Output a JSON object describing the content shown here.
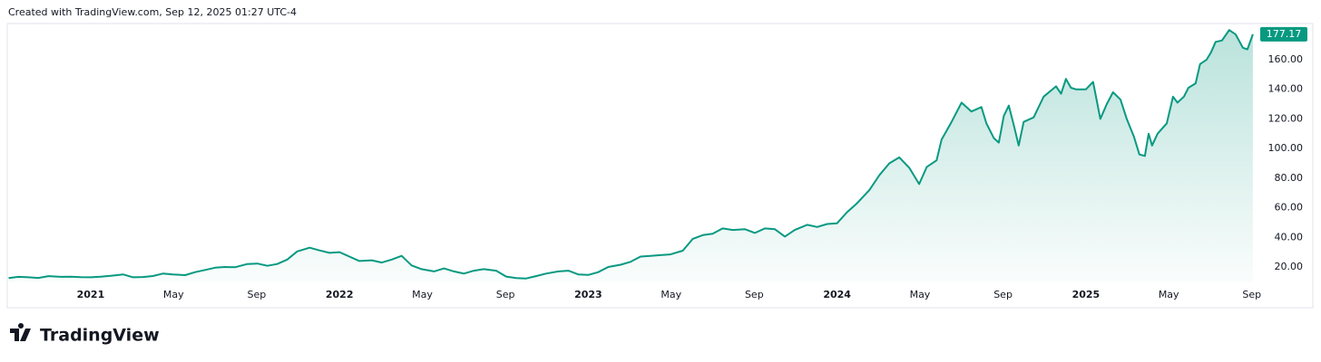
{
  "chart_data": {
    "type": "line",
    "subtitle": "Created with TradingView.com, Sep 12, 2025 01:27 UTC-4",
    "brand": "TradingView",
    "series": [
      {
        "color": "#089981",
        "x": [
          2020.67,
          2020.71,
          2020.75,
          2020.79,
          2020.83,
          2020.88,
          2020.92,
          2020.96,
          2021.0,
          2021.04,
          2021.08,
          2021.13,
          2021.17,
          2021.21,
          2021.25,
          2021.29,
          2021.33,
          2021.38,
          2021.42,
          2021.46,
          2021.5,
          2021.54,
          2021.58,
          2021.63,
          2021.67,
          2021.71,
          2021.75,
          2021.79,
          2021.83,
          2021.88,
          2021.92,
          2021.96,
          2022.0,
          2022.04,
          2022.08,
          2022.13,
          2022.17,
          2022.21,
          2022.25,
          2022.29,
          2022.33,
          2022.38,
          2022.42,
          2022.46,
          2022.5,
          2022.54,
          2022.58,
          2022.63,
          2022.67,
          2022.71,
          2022.75,
          2022.79,
          2022.83,
          2022.88,
          2022.92,
          2022.96,
          2023.0,
          2023.04,
          2023.08,
          2023.13,
          2023.17,
          2023.21,
          2023.25,
          2023.29,
          2023.33,
          2023.38,
          2023.42,
          2023.46,
          2023.5,
          2023.54,
          2023.58,
          2023.63,
          2023.67,
          2023.71,
          2023.75,
          2023.79,
          2023.83,
          2023.88,
          2023.92,
          2023.96,
          2024.0,
          2024.04,
          2024.08,
          2024.13,
          2024.17,
          2024.21,
          2024.25,
          2024.29,
          2024.33,
          2024.36,
          2024.4,
          2024.42,
          2024.46,
          2024.5,
          2024.54,
          2024.58,
          2024.6,
          2024.63,
          2024.65,
          2024.67,
          2024.69,
          2024.71,
          2024.73,
          2024.75,
          2024.79,
          2024.83,
          2024.88,
          2024.9,
          2024.92,
          2024.94,
          2024.96,
          2025.0,
          2025.029,
          2025.058,
          2025.084,
          2025.109,
          2025.139,
          2025.164,
          2025.193,
          2025.215,
          2025.237,
          2025.252,
          2025.266,
          2025.288,
          2025.325,
          2025.35,
          2025.368,
          2025.394,
          2025.412,
          2025.441,
          2025.459,
          2025.485,
          2025.503,
          2025.521,
          2025.547,
          2025.576,
          2025.602,
          2025.631,
          2025.649,
          2025.671
        ],
        "values": [
          12.5,
          13.3,
          13.0,
          12.6,
          13.8,
          13.3,
          13.4,
          13.1,
          13.0,
          13.4,
          14.0,
          15.0,
          13.0,
          13.2,
          13.9,
          15.5,
          15.0,
          14.5,
          16.5,
          18.0,
          19.5,
          20.0,
          19.8,
          22.0,
          22.3,
          20.8,
          22.0,
          25.0,
          30.5,
          33.0,
          31.2,
          29.5,
          30.0,
          27.0,
          24.0,
          24.5,
          23.0,
          25.0,
          27.5,
          21.0,
          18.5,
          17.0,
          19.0,
          17.0,
          15.5,
          17.5,
          18.5,
          17.5,
          13.5,
          12.5,
          12.2,
          13.8,
          15.5,
          17.0,
          17.5,
          15.0,
          14.6,
          16.5,
          20.0,
          21.5,
          23.5,
          27.0,
          27.5,
          28.0,
          28.5,
          31.0,
          39.0,
          41.5,
          42.5,
          46.0,
          45.0,
          45.5,
          43.0,
          46.0,
          45.5,
          40.5,
          45.0,
          48.5,
          47.0,
          49.0,
          49.5,
          57,
          63,
          72,
          82,
          90,
          94,
          87,
          76,
          87.5,
          92,
          106,
          118,
          131,
          125,
          128,
          117,
          107,
          104,
          122,
          129,
          116,
          102,
          118,
          121,
          135,
          142,
          137,
          147,
          141,
          140,
          140,
          145,
          120,
          130,
          138,
          133,
          120,
          108,
          96,
          95,
          110,
          102,
          110,
          117,
          135,
          131,
          135,
          141,
          144,
          157,
          160,
          165,
          172,
          173,
          180,
          177,
          168,
          167,
          177.17
        ]
      }
    ],
    "xlim": [
      2020.672,
      2025.686
    ],
    "xticks": [
      2021,
      {
        "value": 2021.333,
        "label": "May"
      },
      {
        "value": 2021.667,
        "label": "Sep"
      },
      2022,
      {
        "value": 2022.333,
        "label": "May"
      },
      {
        "value": 2022.667,
        "label": "Sep"
      },
      2023,
      {
        "value": 2023.333,
        "label": "May"
      },
      {
        "value": 2023.667,
        "label": "Sep"
      },
      2024,
      {
        "value": 2024.333,
        "label": "May"
      },
      {
        "value": 2024.667,
        "label": "Sep"
      },
      2025,
      {
        "value": 2025.333,
        "label": "May"
      },
      {
        "value": 2025.667,
        "label": "Sep"
      }
    ],
    "ylim": [
      9.6,
      183.8
    ],
    "yticks": [
      {
        "value": 20,
        "label": "20.00"
      },
      {
        "value": 40,
        "label": "40.00"
      },
      {
        "value": 60,
        "label": "60.00"
      },
      {
        "value": 80,
        "label": "80.00"
      },
      {
        "value": 100,
        "label": "100.00"
      },
      {
        "value": 120,
        "label": "120.00"
      },
      {
        "value": 140,
        "label": "140.00"
      },
      {
        "value": 160,
        "label": "160.00"
      }
    ],
    "grid": false
  }
}
